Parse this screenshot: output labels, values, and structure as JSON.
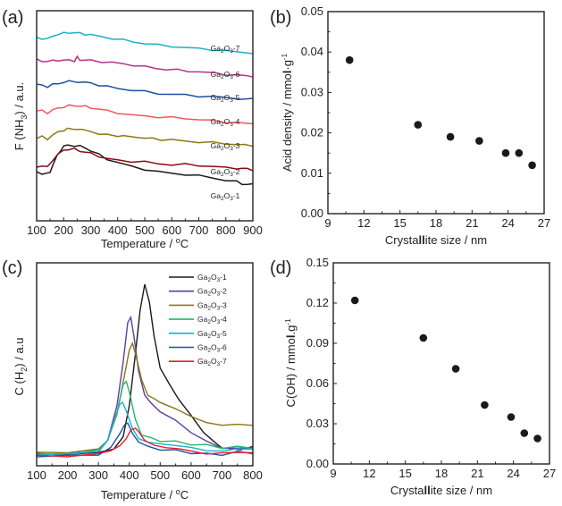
{
  "figure": {
    "panels": [
      "(a)",
      "(b)",
      "(c)",
      "(d)"
    ]
  },
  "chart_data": [
    {
      "id": "a",
      "panel_label": "(a)",
      "type": "line",
      "title": "",
      "xlabel": "Temperature / ",
      "xlabel_unit_sup": "o",
      "xlabel_unit": "C",
      "ylabel_pre": "F (NH",
      "ylabel_sub": "3",
      "ylabel_post": ") / a.u.",
      "xlim": [
        100,
        900
      ],
      "xticks": [
        100,
        200,
        300,
        400,
        500,
        600,
        700,
        800,
        900
      ],
      "yticks_visible": false,
      "stacked_offsets": true,
      "series": [
        {
          "name": "Ga2O3-1",
          "label_base": "Ga",
          "label_s1": "2",
          "label_mid": "O",
          "label_s2": "3",
          "label_suffix": "-1",
          "color": "#1a1a1a",
          "x": [
            100,
            120,
            135,
            150,
            160,
            175,
            190,
            200,
            215,
            240,
            260,
            280,
            300,
            330,
            360,
            400,
            450,
            500,
            550,
            600,
            650,
            700,
            750,
            800,
            840,
            860,
            880,
            900
          ],
          "y": [
            0.22,
            0.2,
            0.19,
            0.22,
            0.3,
            0.4,
            0.48,
            0.52,
            0.53,
            0.53,
            0.52,
            0.5,
            0.47,
            0.42,
            0.37,
            0.33,
            0.28,
            0.25,
            0.22,
            0.2,
            0.19,
            0.17,
            0.15,
            0.12,
            0.1,
            0.08,
            0.07,
            0.07
          ]
        },
        {
          "name": "Ga2O3-2",
          "label_base": "Ga",
          "label_s1": "2",
          "label_mid": "O",
          "label_s2": "3",
          "label_suffix": "-2",
          "color": "#8b0a14",
          "x": [
            100,
            120,
            140,
            160,
            180,
            200,
            215,
            240,
            260,
            280,
            300,
            330,
            360,
            400,
            450,
            500,
            550,
            600,
            650,
            700,
            750,
            800,
            840,
            860,
            880,
            900
          ],
          "y": [
            0.0,
            0.0,
            -0.01,
            0.08,
            0.14,
            0.19,
            0.2,
            0.2,
            0.18,
            0.17,
            0.15,
            0.12,
            0.09,
            0.07,
            0.06,
            0.05,
            0.03,
            0.02,
            0.02,
            0.01,
            0.0,
            -0.02,
            -0.02,
            -0.03,
            -0.03,
            -0.04
          ]
        },
        {
          "name": "Ga2O3-3",
          "label_base": "Ga",
          "label_s1": "2",
          "label_mid": "O",
          "label_s2": "3",
          "label_suffix": "-3",
          "color": "#8a7a12",
          "x": [
            100,
            120,
            140,
            160,
            180,
            200,
            215,
            235,
            250,
            270,
            300,
            330,
            360,
            400,
            420,
            450,
            480,
            500,
            530,
            560,
            600,
            650,
            700,
            750,
            800,
            850,
            870,
            900
          ],
          "y": [
            0.0,
            0.01,
            -0.02,
            0.04,
            0.06,
            0.09,
            0.11,
            0.09,
            0.11,
            0.09,
            0.07,
            0.05,
            0.03,
            0.02,
            0.03,
            0.0,
            0.01,
            -0.01,
            -0.01,
            -0.02,
            -0.03,
            -0.04,
            -0.05,
            -0.06,
            -0.07,
            -0.08,
            -0.09,
            -0.09
          ]
        },
        {
          "name": "Ga2O3-4",
          "label_base": "Ga",
          "label_s1": "2",
          "label_mid": "O",
          "label_s2": "3",
          "label_suffix": "-4",
          "color": "#ee5a5a",
          "x": [
            100,
            120,
            140,
            160,
            180,
            200,
            220,
            240,
            260,
            280,
            300,
            330,
            360,
            400,
            440,
            500,
            550,
            600,
            650,
            700,
            750,
            800,
            850,
            900
          ],
          "y": [
            0.0,
            0.0,
            -0.02,
            0.01,
            0.03,
            0.05,
            0.06,
            0.06,
            0.06,
            0.05,
            0.04,
            0.02,
            0.0,
            -0.02,
            -0.05,
            -0.06,
            -0.07,
            -0.08,
            -0.09,
            -0.1,
            -0.12,
            -0.13,
            -0.14,
            -0.16
          ]
        },
        {
          "name": "Ga2O3-5",
          "label_base": "Ga",
          "label_s1": "2",
          "label_mid": "O",
          "label_s2": "3",
          "label_suffix": "-5",
          "color": "#1f4fa0",
          "x": [
            100,
            120,
            140,
            160,
            180,
            200,
            220,
            250,
            280,
            300,
            330,
            360,
            400,
            450,
            500,
            550,
            600,
            650,
            700,
            750,
            800,
            850,
            900
          ],
          "y": [
            0.0,
            0.0,
            -0.02,
            0.0,
            0.02,
            0.03,
            0.04,
            0.04,
            0.03,
            0.02,
            0.0,
            -0.02,
            -0.04,
            -0.06,
            -0.08,
            -0.1,
            -0.11,
            -0.12,
            -0.13,
            -0.14,
            -0.15,
            -0.16,
            -0.17
          ]
        },
        {
          "name": "Ga2O3-6",
          "label_base": "Ga",
          "label_s1": "2",
          "label_mid": "O",
          "label_s2": "3",
          "label_suffix": "-6",
          "color": "#b7338f",
          "x": [
            100,
            120,
            140,
            160,
            180,
            200,
            220,
            240,
            250,
            260,
            280,
            300,
            340,
            380,
            420,
            460,
            500,
            540,
            580,
            620,
            660,
            700,
            760,
            800,
            840,
            880,
            900
          ],
          "y": [
            0.0,
            -0.01,
            -0.02,
            -0.01,
            0.0,
            -0.01,
            0.0,
            -0.01,
            0.03,
            0.0,
            0.0,
            -0.01,
            -0.02,
            -0.03,
            -0.05,
            -0.06,
            -0.08,
            -0.1,
            -0.11,
            -0.12,
            -0.13,
            -0.14,
            -0.16,
            -0.17,
            -0.18,
            -0.19,
            -0.19
          ]
        },
        {
          "name": "Ga2O3-7",
          "label_base": "Ga",
          "label_s1": "2",
          "label_mid": "O",
          "label_s2": "3",
          "label_suffix": "-7",
          "color": "#1ab0c8",
          "x": [
            100,
            120,
            140,
            160,
            180,
            200,
            220,
            240,
            260,
            280,
            300,
            340,
            380,
            420,
            460,
            500,
            550,
            600,
            650,
            700,
            750,
            800,
            850,
            900
          ],
          "y": [
            0.0,
            -0.01,
            -0.02,
            0.02,
            0.04,
            0.05,
            0.06,
            0.055,
            0.05,
            0.04,
            0.03,
            0.01,
            -0.01,
            -0.03,
            -0.05,
            -0.07,
            -0.09,
            -0.1,
            -0.12,
            -0.13,
            -0.14,
            -0.16,
            -0.17,
            -0.18
          ]
        }
      ]
    },
    {
      "id": "b",
      "panel_label": "(b)",
      "type": "scatter",
      "title": "",
      "xlabel_pre": "Crysta",
      "xlabel_bold": "ll",
      "xlabel_post": "ite size / nm",
      "ylabel_pre": "Acid density / mmo",
      "ylabel_bold": "l",
      "ylabel_post": "·g",
      "ylabel_sup": "-1",
      "xlim": [
        9,
        27
      ],
      "ylim": [
        0.0,
        0.05
      ],
      "xticks": [
        9,
        12,
        15,
        18,
        21,
        24,
        27
      ],
      "yticks": [
        0.0,
        0.01,
        0.02,
        0.03,
        0.04,
        0.05
      ],
      "ytick_labels": [
        "0.00",
        "0.01",
        "0.02",
        "0.03",
        "0.04",
        "0.05"
      ],
      "marker_color": "#1a1a1a",
      "x": [
        10.8,
        16.5,
        19.2,
        21.6,
        23.8,
        24.9,
        26.0
      ],
      "y": [
        0.038,
        0.022,
        0.019,
        0.018,
        0.015,
        0.015,
        0.012
      ]
    },
    {
      "id": "c",
      "panel_label": "(c)",
      "type": "line",
      "title": "",
      "xlabel": "Temperature / ",
      "xlabel_unit_sup": "o",
      "xlabel_unit": "C",
      "ylabel_pre": "C (H",
      "ylabel_sub": "2",
      "ylabel_post": ") / a.u",
      "xlim": [
        100,
        800
      ],
      "xticks": [
        100,
        200,
        300,
        400,
        500,
        600,
        700,
        800
      ],
      "yticks_visible": false,
      "legend_position": "top-right",
      "series": [
        {
          "name": "Ga2O3-1",
          "label_base": "Ga",
          "label_s1": "2",
          "label_mid": "O",
          "label_s2": "3",
          "label_suffix": "-1",
          "color": "#1a1a1a",
          "x": [
            100,
            200,
            300,
            350,
            380,
            400,
            420,
            435,
            450,
            465,
            480,
            500,
            530,
            560,
            600,
            640,
            680,
            700,
            720,
            760,
            800
          ],
          "y": [
            0.02,
            0.02,
            0.03,
            0.05,
            0.12,
            0.3,
            0.6,
            0.85,
            1.0,
            0.9,
            0.7,
            0.52,
            0.42,
            0.34,
            0.24,
            0.15,
            0.08,
            0.06,
            0.05,
            0.05,
            0.06
          ]
        },
        {
          "name": "Ga2O3-2",
          "label_base": "Ga",
          "label_s1": "2",
          "label_mid": "O",
          "label_s2": "3",
          "label_suffix": "-2",
          "color": "#5b3ea8",
          "x": [
            100,
            200,
            300,
            330,
            360,
            380,
            395,
            405,
            415,
            430,
            450,
            470,
            500,
            550,
            600,
            650,
            700,
            750,
            800
          ],
          "y": [
            0.02,
            0.02,
            0.04,
            0.1,
            0.3,
            0.55,
            0.78,
            0.81,
            0.7,
            0.5,
            0.36,
            0.31,
            0.27,
            0.21,
            0.15,
            0.09,
            0.06,
            0.05,
            0.06
          ]
        },
        {
          "name": "Ga2O3-3",
          "label_base": "Ga",
          "label_s1": "2",
          "label_mid": "O",
          "label_s2": "3",
          "label_suffix": "-3",
          "color": "#877718",
          "x": [
            100,
            200,
            300,
            330,
            360,
            385,
            400,
            410,
            420,
            440,
            460,
            480,
            500,
            550,
            600,
            650,
            700,
            750,
            800
          ],
          "y": [
            0.03,
            0.03,
            0.05,
            0.1,
            0.25,
            0.48,
            0.62,
            0.66,
            0.6,
            0.45,
            0.36,
            0.34,
            0.32,
            0.28,
            0.24,
            0.2,
            0.19,
            0.19,
            0.19
          ]
        },
        {
          "name": "Ga2O3-4",
          "label_base": "Ga",
          "label_s1": "2",
          "label_mid": "O",
          "label_s2": "3",
          "label_suffix": "-4",
          "color": "#22b86e",
          "x": [
            100,
            200,
            300,
            330,
            360,
            380,
            390,
            400,
            420,
            440,
            470,
            500,
            550,
            600,
            650,
            700,
            750,
            800
          ],
          "y": [
            0.02,
            0.02,
            0.04,
            0.1,
            0.26,
            0.42,
            0.44,
            0.38,
            0.22,
            0.13,
            0.11,
            0.1,
            0.09,
            0.08,
            0.07,
            0.06,
            0.06,
            0.06
          ]
        },
        {
          "name": "Ga2O3-5",
          "label_base": "Ga",
          "label_s1": "2",
          "label_mid": "O",
          "label_s2": "3",
          "label_suffix": "-5",
          "color": "#1ab2d0",
          "x": [
            100,
            200,
            300,
            330,
            355,
            370,
            378,
            390,
            410,
            430,
            460,
            500,
            550,
            600,
            650,
            700,
            750,
            800
          ],
          "y": [
            0.02,
            0.02,
            0.04,
            0.1,
            0.24,
            0.31,
            0.32,
            0.27,
            0.17,
            0.11,
            0.09,
            0.08,
            0.07,
            0.06,
            0.04,
            0.04,
            0.05,
            0.05
          ]
        },
        {
          "name": "Ga2O3-6",
          "label_base": "Ga",
          "label_s1": "2",
          "label_mid": "O",
          "label_s2": "3",
          "label_suffix": "-6",
          "color": "#1f4fa0",
          "x": [
            100,
            200,
            300,
            340,
            370,
            385,
            395,
            410,
            430,
            460,
            500,
            550,
            600,
            650,
            700,
            750,
            800
          ],
          "y": [
            0.01,
            0.01,
            0.02,
            0.06,
            0.14,
            0.19,
            0.2,
            0.14,
            0.09,
            0.06,
            0.05,
            0.04,
            0.03,
            0.02,
            0.02,
            0.03,
            0.03
          ]
        },
        {
          "name": "Ga2O3-7",
          "label_base": "Ga",
          "label_s1": "2",
          "label_mid": "O",
          "label_s2": "3",
          "label_suffix": "-7",
          "color": "#e52231",
          "x": [
            100,
            200,
            300,
            340,
            370,
            390,
            405,
            420,
            430,
            450,
            480,
            520,
            560,
            600,
            650,
            700,
            750,
            800
          ],
          "y": [
            0.01,
            0.01,
            0.02,
            0.04,
            0.07,
            0.11,
            0.16,
            0.17,
            0.15,
            0.1,
            0.07,
            0.06,
            0.05,
            0.04,
            0.02,
            0.03,
            0.03,
            0.03
          ]
        }
      ]
    },
    {
      "id": "d",
      "panel_label": "(d)",
      "type": "scatter",
      "title": "",
      "xlabel_pre": "Crysta",
      "xlabel_bold": "ll",
      "xlabel_post": "ite size / nm",
      "ylabel_pre": "C(OH) / mmo",
      "ylabel_bold": "l",
      "ylabel_post": ".g",
      "ylabel_sup": "-1",
      "xlim": [
        9,
        27
      ],
      "ylim": [
        0.0,
        0.15
      ],
      "xticks": [
        9,
        12,
        15,
        18,
        21,
        24,
        27
      ],
      "yticks": [
        0.0,
        0.03,
        0.06,
        0.09,
        0.12,
        0.15
      ],
      "ytick_labels": [
        "0.00",
        "0.03",
        "0.06",
        "0.09",
        "0.12",
        "0.15"
      ],
      "marker_color": "#1a1a1a",
      "x": [
        10.8,
        16.5,
        19.2,
        21.6,
        23.8,
        24.9,
        26.0
      ],
      "y": [
        0.122,
        0.094,
        0.071,
        0.044,
        0.035,
        0.023,
        0.019
      ]
    }
  ]
}
